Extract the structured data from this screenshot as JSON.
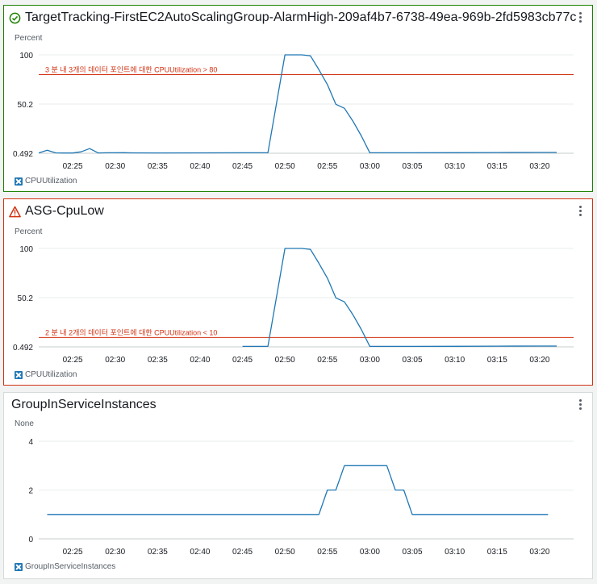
{
  "panels": [
    {
      "title": "TargetTracking-FirstEC2AutoScalingGroup-AlarmHigh-209af4b7-6738-49ea-969b-2fd5983cb77c",
      "status": "ok",
      "status_icon": "check-circle-icon",
      "status_color": "#1d8102",
      "unit_label": "Percent",
      "legend_label": "CPUUtilization",
      "threshold_label": "3 분 내 3개의 데이터 포인트에 대한 CPUUtilization > 80"
    },
    {
      "title": "ASG-CpuLow",
      "status": "alarm",
      "status_icon": "warning-triangle-icon",
      "status_color": "#d13212",
      "unit_label": "Percent",
      "legend_label": "CPUUtilization",
      "threshold_label": "2 분 내 2개의 데이터 포인트에 대한 CPUUtilization < 10"
    },
    {
      "title": "GroupInServiceInstances",
      "status": "none",
      "unit_label": "None",
      "legend_label": "GroupInServiceInstances"
    }
  ],
  "chart_data": [
    {
      "type": "line",
      "title": "TargetTracking-FirstEC2AutoScalingGroup-AlarmHigh-209af4b7-6738-49ea-969b-2fd5983cb77c",
      "ylabel": "Percent",
      "ylim": [
        0.492,
        100
      ],
      "yticks": [
        "0.492",
        "50.2",
        "100"
      ],
      "xticks": [
        "02:25",
        "02:30",
        "02:35",
        "02:40",
        "02:45",
        "02:50",
        "02:55",
        "03:00",
        "03:05",
        "03:10",
        "03:15",
        "03:20"
      ],
      "x_range": [
        "02:21",
        "03:24"
      ],
      "threshold": 80,
      "threshold_color": "#d13212",
      "series": [
        {
          "name": "CPUUtilization",
          "color": "#1f77b4",
          "x": [
            "02:21",
            "02:22",
            "02:23",
            "02:24",
            "02:25",
            "02:26",
            "02:27",
            "02:28",
            "02:29",
            "02:30",
            "02:31",
            "02:32",
            "02:35",
            "02:40",
            "02:45",
            "02:48",
            "02:50",
            "02:52",
            "02:53",
            "02:54",
            "02:55",
            "02:56",
            "02:57",
            "02:58",
            "02:59",
            "03:00",
            "03:05",
            "03:10",
            "03:15",
            "03:20",
            "03:21",
            "03:22"
          ],
          "y": [
            0.8,
            3.5,
            0.9,
            0.7,
            0.7,
            2.0,
            5.2,
            0.8,
            1.0,
            1.0,
            1.1,
            0.9,
            0.8,
            0.9,
            1.0,
            1.1,
            100,
            100,
            99,
            85,
            70,
            50,
            46,
            33,
            18,
            1.0,
            1.0,
            1.1,
            1.2,
            1.3,
            1.3,
            1.3
          ]
        }
      ]
    },
    {
      "type": "line",
      "title": "ASG-CpuLow",
      "ylabel": "Percent",
      "ylim": [
        0.492,
        100
      ],
      "yticks": [
        "0.492",
        "50.2",
        "100"
      ],
      "xticks": [
        "02:25",
        "02:30",
        "02:35",
        "02:40",
        "02:45",
        "02:50",
        "02:55",
        "03:00",
        "03:05",
        "03:10",
        "03:15",
        "03:20"
      ],
      "x_range": [
        "02:21",
        "03:24"
      ],
      "threshold": 10,
      "threshold_color": "#d13212",
      "series": [
        {
          "name": "CPUUtilization",
          "color": "#1f77b4",
          "x": [
            "02:45",
            "02:48",
            "02:50",
            "02:52",
            "02:53",
            "02:54",
            "02:55",
            "02:56",
            "02:57",
            "02:58",
            "02:59",
            "03:00",
            "03:05",
            "03:10",
            "03:15",
            "03:20",
            "03:21",
            "03:22"
          ],
          "y": [
            1.0,
            1.1,
            100,
            100,
            99,
            85,
            70,
            50,
            46,
            33,
            18,
            1.0,
            1.0,
            1.1,
            1.2,
            1.3,
            1.3,
            1.3
          ]
        }
      ]
    },
    {
      "type": "line",
      "title": "GroupInServiceInstances",
      "ylabel": "None",
      "ylim": [
        0,
        4
      ],
      "yticks": [
        "0",
        "2",
        "4"
      ],
      "xticks": [
        "02:25",
        "02:30",
        "02:35",
        "02:40",
        "02:45",
        "02:50",
        "02:55",
        "03:00",
        "03:05",
        "03:10",
        "03:15",
        "03:20"
      ],
      "x_range": [
        "02:21",
        "03:24"
      ],
      "series": [
        {
          "name": "GroupInServiceInstances",
          "color": "#1f77b4",
          "x": [
            "02:22",
            "02:54",
            "02:55",
            "02:56",
            "02:57",
            "03:00",
            "03:02",
            "03:03",
            "03:04",
            "03:05",
            "03:10",
            "03:15",
            "03:20",
            "03:21"
          ],
          "y": [
            1,
            1,
            2,
            2,
            3,
            3,
            3,
            2,
            2,
            1,
            1,
            1,
            1,
            1
          ]
        }
      ]
    }
  ]
}
